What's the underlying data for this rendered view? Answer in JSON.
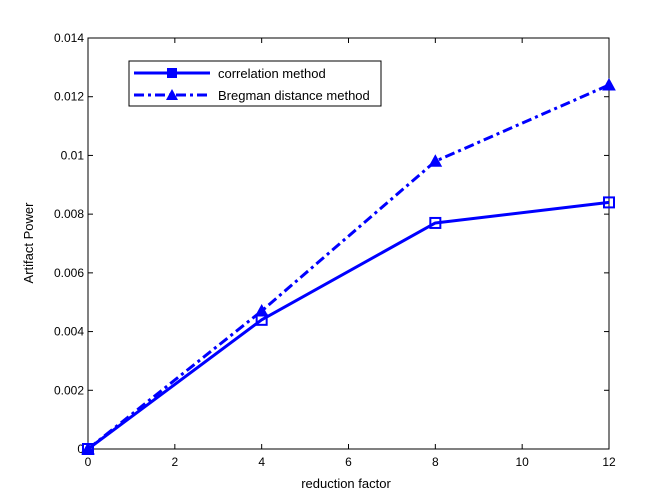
{
  "chart_data": {
    "type": "line",
    "title": "",
    "xlabel": "reduction factor",
    "ylabel": "Artifact  Power",
    "xlim": [
      0,
      12
    ],
    "ylim": [
      0,
      0.014
    ],
    "xticks": [
      "0",
      "2",
      "4",
      "6",
      "8",
      "10",
      "12"
    ],
    "yticks": [
      "0",
      "0.002",
      "0.004",
      "0.006",
      "0.008",
      "0.01",
      "0.012",
      "0.014"
    ],
    "grid": false,
    "legend_position": "top-left",
    "series": [
      {
        "name": "correlation method",
        "color": "#0000ff",
        "line_style": "solid",
        "marker": "square",
        "x": [
          0,
          4,
          8,
          12
        ],
        "y": [
          0,
          0.0044,
          0.0077,
          0.0084
        ]
      },
      {
        "name": "Bregman distance method",
        "color": "#0000ff",
        "line_style": "dash-dot",
        "marker": "triangle",
        "x": [
          0,
          4,
          8,
          12
        ],
        "y": [
          0,
          0.0047,
          0.0098,
          0.0124
        ]
      }
    ]
  }
}
